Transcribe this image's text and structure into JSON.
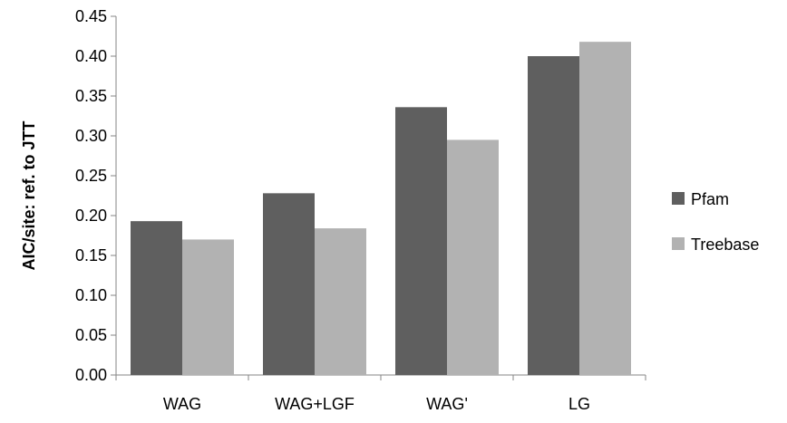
{
  "chart_data": {
    "type": "bar",
    "title": "",
    "xlabel": "",
    "ylabel": "AIC/site: ref. to JTT",
    "categories": [
      "WAG",
      "WAG+LGF",
      "WAG'",
      "LG"
    ],
    "series": [
      {
        "name": "Pfam",
        "values": [
          0.193,
          0.228,
          0.336,
          0.4
        ],
        "color": "#5f5f5f"
      },
      {
        "name": "Treebase",
        "values": [
          0.17,
          0.184,
          0.295,
          0.418
        ],
        "color": "#b2b2b2"
      }
    ],
    "ylim": [
      0,
      0.45
    ],
    "yticks": [
      "0.00",
      "0.05",
      "0.10",
      "0.15",
      "0.20",
      "0.25",
      "0.30",
      "0.35",
      "0.40",
      "0.45"
    ],
    "grid": false,
    "legend_position": "right"
  }
}
